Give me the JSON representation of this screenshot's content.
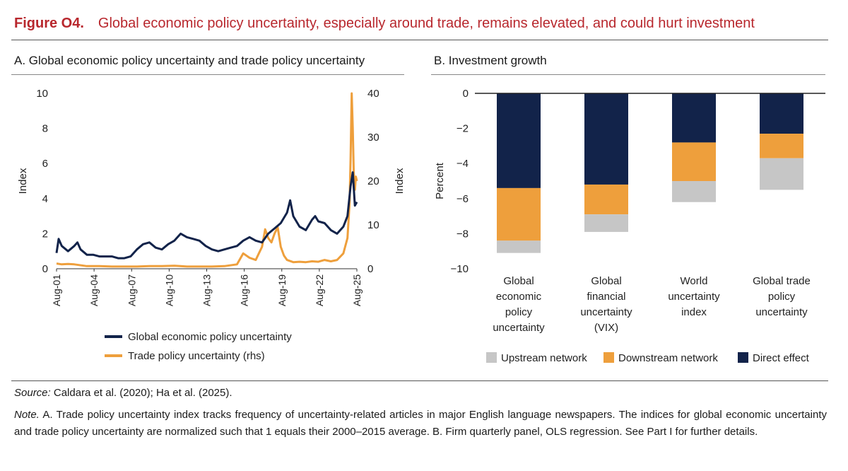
{
  "figure": {
    "label": "Figure O4.",
    "title": "Global economic policy uncertainty, especially around trade, remains elevated, and could hurt investment"
  },
  "panel_a": {
    "title": "A. Global economic policy uncertainty and trade policy uncertainty"
  },
  "panel_b": {
    "title": "B. Investment growth"
  },
  "colors": {
    "navy": "#12234a",
    "orange": "#ee9f3c",
    "gray": "#c6c6c6",
    "title_red": "#b8272d"
  },
  "chart_data": [
    {
      "id": "panel_a",
      "type": "line",
      "title": "A. Global economic policy uncertainty and trade policy uncertainty",
      "ylabel": "Index",
      "ylabel_right": "Index",
      "ylim": [
        0,
        10
      ],
      "ylim_right": [
        0,
        40
      ],
      "yticks": [
        "0",
        "2",
        "4",
        "6",
        "8",
        "10"
      ],
      "yticks_right": [
        "0",
        "10",
        "20",
        "30",
        "40"
      ],
      "x_tick_labels": [
        "Aug-01",
        "Aug-04",
        "Aug-07",
        "Aug-10",
        "Aug-13",
        "Aug-16",
        "Aug-19",
        "Aug-22",
        "Aug-25"
      ],
      "x_tick_years": [
        2001.58,
        2004.58,
        2007.58,
        2010.58,
        2013.58,
        2016.58,
        2019.58,
        2022.58,
        2025.58
      ],
      "x_range": [
        2001.58,
        2025.58
      ],
      "series": [
        {
          "name": "Global economic policy uncertainty",
          "axis": "left",
          "color": "#12234a",
          "points": [
            [
              2001.58,
              0.9
            ],
            [
              2001.75,
              1.7
            ],
            [
              2002.0,
              1.3
            ],
            [
              2002.5,
              1.0
            ],
            [
              2003.0,
              1.3
            ],
            [
              2003.25,
              1.5
            ],
            [
              2003.5,
              1.1
            ],
            [
              2004.0,
              0.8
            ],
            [
              2004.5,
              0.8
            ],
            [
              2005.0,
              0.7
            ],
            [
              2005.5,
              0.7
            ],
            [
              2006.0,
              0.7
            ],
            [
              2006.5,
              0.6
            ],
            [
              2007.0,
              0.6
            ],
            [
              2007.5,
              0.7
            ],
            [
              2008.0,
              1.1
            ],
            [
              2008.5,
              1.4
            ],
            [
              2009.0,
              1.5
            ],
            [
              2009.5,
              1.2
            ],
            [
              2010.0,
              1.1
            ],
            [
              2010.5,
              1.4
            ],
            [
              2011.0,
              1.6
            ],
            [
              2011.5,
              2.0
            ],
            [
              2012.0,
              1.8
            ],
            [
              2012.5,
              1.7
            ],
            [
              2013.0,
              1.6
            ],
            [
              2013.5,
              1.3
            ],
            [
              2014.0,
              1.1
            ],
            [
              2014.5,
              1.0
            ],
            [
              2015.0,
              1.1
            ],
            [
              2015.5,
              1.2
            ],
            [
              2016.0,
              1.3
            ],
            [
              2016.5,
              1.6
            ],
            [
              2017.0,
              1.8
            ],
            [
              2017.5,
              1.6
            ],
            [
              2018.0,
              1.5
            ],
            [
              2018.5,
              2.0
            ],
            [
              2019.0,
              2.3
            ],
            [
              2019.5,
              2.6
            ],
            [
              2020.0,
              3.2
            ],
            [
              2020.25,
              3.9
            ],
            [
              2020.5,
              3.0
            ],
            [
              2021.0,
              2.4
            ],
            [
              2021.5,
              2.2
            ],
            [
              2022.0,
              2.8
            ],
            [
              2022.25,
              3.0
            ],
            [
              2022.5,
              2.7
            ],
            [
              2023.0,
              2.6
            ],
            [
              2023.5,
              2.2
            ],
            [
              2024.0,
              2.0
            ],
            [
              2024.5,
              2.4
            ],
            [
              2024.83,
              3.0
            ],
            [
              2025.08,
              4.7
            ],
            [
              2025.25,
              5.5
            ],
            [
              2025.42,
              3.6
            ],
            [
              2025.58,
              3.8
            ]
          ]
        },
        {
          "name": "Trade policy uncertainty (rhs)",
          "axis": "right",
          "color": "#ee9f3c",
          "points": [
            [
              2001.58,
              1.2
            ],
            [
              2002.0,
              1.0
            ],
            [
              2002.5,
              1.1
            ],
            [
              2003.0,
              1.0
            ],
            [
              2004.0,
              0.6
            ],
            [
              2005.0,
              0.6
            ],
            [
              2006.0,
              0.5
            ],
            [
              2007.0,
              0.5
            ],
            [
              2008.0,
              0.5
            ],
            [
              2009.0,
              0.6
            ],
            [
              2010.0,
              0.6
            ],
            [
              2011.0,
              0.7
            ],
            [
              2012.0,
              0.5
            ],
            [
              2013.0,
              0.5
            ],
            [
              2014.0,
              0.5
            ],
            [
              2015.0,
              0.6
            ],
            [
              2016.0,
              1.0
            ],
            [
              2016.5,
              3.5
            ],
            [
              2017.0,
              2.5
            ],
            [
              2017.5,
              2.0
            ],
            [
              2017.75,
              3.5
            ],
            [
              2018.0,
              5.0
            ],
            [
              2018.25,
              9.0
            ],
            [
              2018.5,
              7.0
            ],
            [
              2018.75,
              6.0
            ],
            [
              2019.0,
              8.0
            ],
            [
              2019.25,
              9.5
            ],
            [
              2019.5,
              5.0
            ],
            [
              2019.75,
              3.0
            ],
            [
              2020.0,
              2.0
            ],
            [
              2020.5,
              1.5
            ],
            [
              2021.0,
              1.6
            ],
            [
              2021.5,
              1.5
            ],
            [
              2022.0,
              1.7
            ],
            [
              2022.5,
              1.6
            ],
            [
              2023.0,
              2.0
            ],
            [
              2023.5,
              1.7
            ],
            [
              2024.0,
              2.0
            ],
            [
              2024.5,
              3.5
            ],
            [
              2024.83,
              7.0
            ],
            [
              2025.0,
              15.0
            ],
            [
              2025.08,
              25.0
            ],
            [
              2025.17,
              40.0
            ],
            [
              2025.25,
              32.0
            ],
            [
              2025.33,
              22.0
            ],
            [
              2025.42,
              18.0
            ],
            [
              2025.5,
              21.0
            ],
            [
              2025.58,
              20.0
            ]
          ]
        }
      ],
      "legend": [
        "Global economic policy uncertainty",
        "Trade policy uncertainty (rhs)"
      ]
    },
    {
      "id": "panel_b",
      "type": "bar",
      "stacked": true,
      "title": "B. Investment growth",
      "ylabel": "Percent",
      "ylim": [
        -10,
        0
      ],
      "yticks": [
        "0",
        "−2",
        "−4",
        "−6",
        "−8",
        "−10"
      ],
      "categories": [
        [
          "Global",
          "economic",
          "policy",
          "uncertainty"
        ],
        [
          "Global",
          "financial",
          "uncertainty",
          "(VIX)"
        ],
        [
          "World",
          "uncertainty",
          "index"
        ],
        [
          "Global trade",
          "policy",
          "uncertainty"
        ]
      ],
      "series": [
        {
          "name": "Direct effect",
          "color": "#12234a",
          "values": [
            -5.4,
            -5.2,
            -2.8,
            -2.3
          ]
        },
        {
          "name": "Downstream network",
          "color": "#ee9f3c",
          "values": [
            -3.0,
            -1.7,
            -2.2,
            -1.4
          ]
        },
        {
          "name": "Upstream network",
          "color": "#c6c6c6",
          "values": [
            -0.7,
            -1.0,
            -1.2,
            -1.8
          ]
        }
      ],
      "legend": [
        "Upstream network",
        "Downstream network",
        "Direct effect"
      ]
    }
  ],
  "footer": {
    "source_label": "Source:",
    "source_text": " Caldara et al. (2020); Ha et al. (2025).",
    "note_label": "Note.",
    "note_text": " A. Trade policy uncertainty index tracks frequency of uncertainty-related articles in major English language newspapers. The indices for global economic uncertainty and trade policy uncertainty are normalized such that 1 equals their 2000–2015 average. B. Firm quarterly panel, OLS regression. See Part I for further details."
  }
}
